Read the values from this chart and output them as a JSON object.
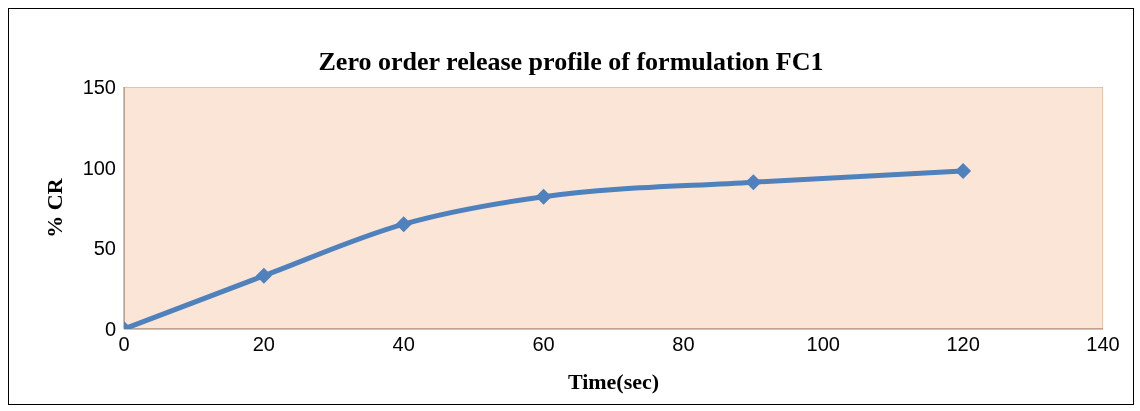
{
  "chart_data": {
    "type": "line",
    "title": "Zero order release profile of formulation FC1",
    "xlabel": "Time(sec)",
    "ylabel": "% CR",
    "x": [
      0,
      20,
      40,
      60,
      90,
      120
    ],
    "series": [
      {
        "color": "#4f81bd",
        "values": [
          0,
          33,
          65,
          82,
          91,
          98
        ]
      }
    ],
    "xlim": [
      0,
      140
    ],
    "xticks": [
      0,
      20,
      40,
      60,
      80,
      100,
      120,
      140
    ],
    "ylim": [
      0,
      150
    ],
    "yticks": [
      0,
      50,
      100,
      150
    ],
    "grid": false,
    "legend": false,
    "marker": "diamond",
    "line_style": "solid"
  }
}
